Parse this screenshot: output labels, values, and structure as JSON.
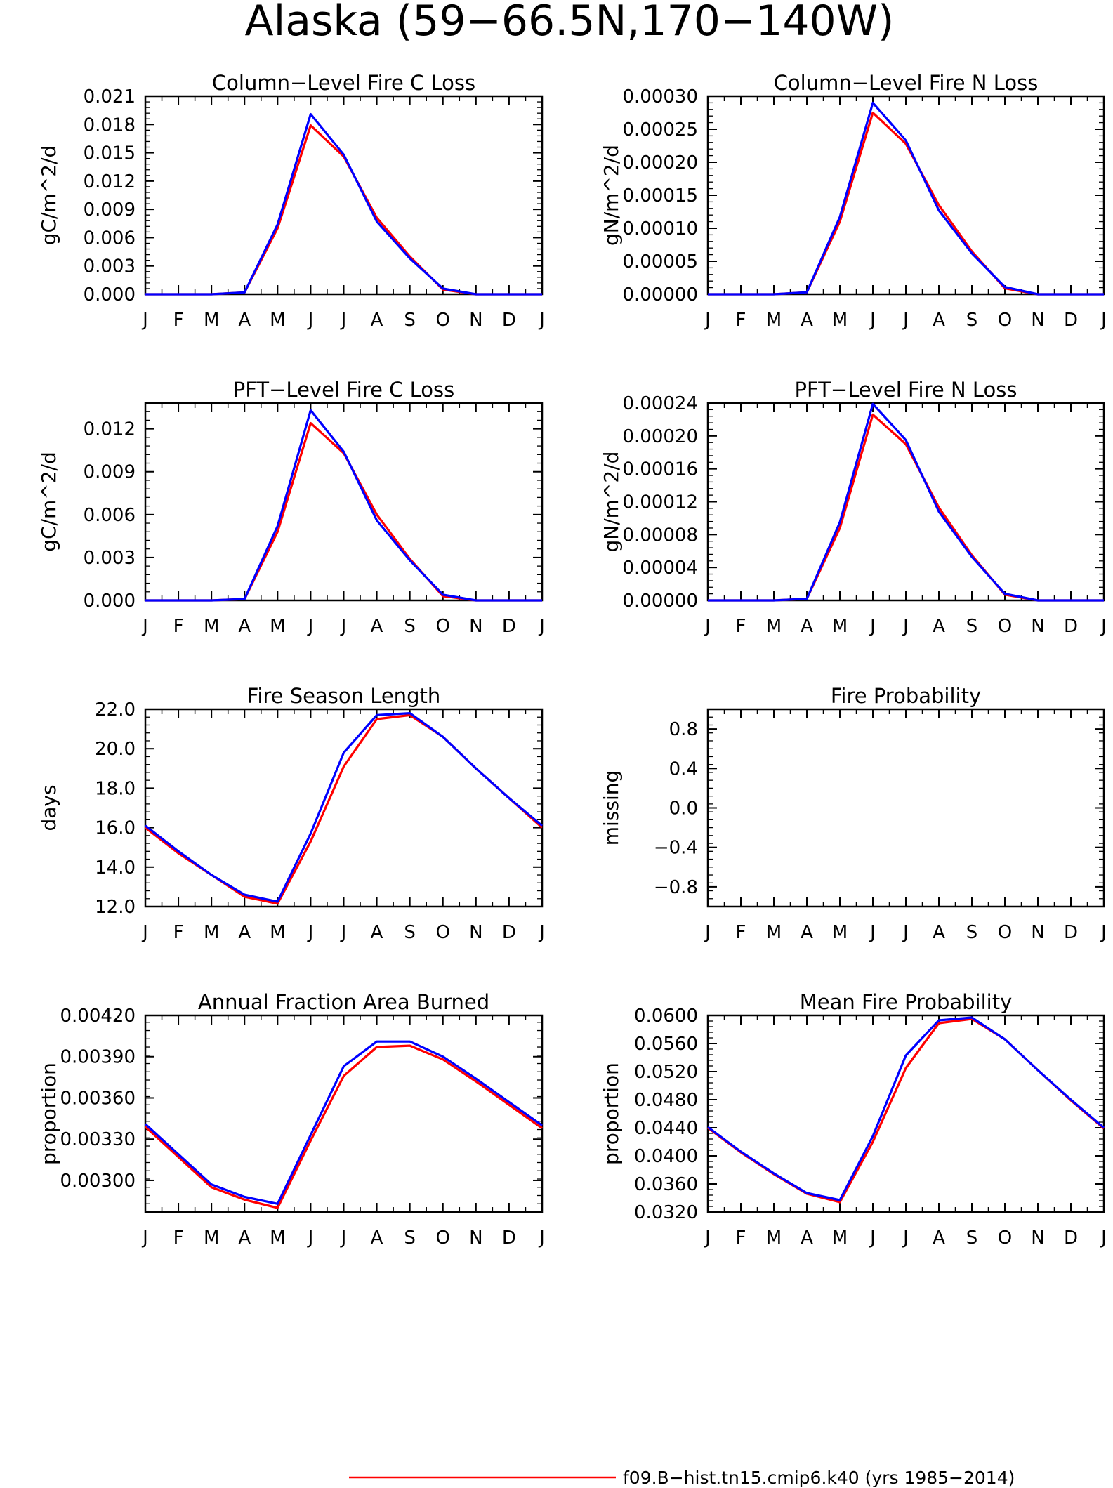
{
  "title": "Alaska (59−66.5N,170−140W)",
  "colors": {
    "series_1": "#ff0000",
    "series_2": "#0000ff",
    "axis": "#000000"
  },
  "legend": {
    "items": [
      {
        "label": "f09.B−hist.tn15.cmip6.k40 (yrs 1985−2014)",
        "color": "#ff0000"
      }
    ]
  },
  "chart_data": [
    {
      "type": "line",
      "title": "Column−Level Fire C Loss",
      "ylabel": "gC/m^2/d",
      "categories": [
        "J",
        "F",
        "M",
        "A",
        "M",
        "J",
        "J",
        "A",
        "S",
        "O",
        "N",
        "D",
        "J"
      ],
      "ylim": [
        0,
        0.021
      ],
      "yticks": [
        "0.000",
        "0.003",
        "0.006",
        "0.009",
        "0.012",
        "0.015",
        "0.018",
        "0.021"
      ],
      "series": [
        {
          "values": [
            0,
            0,
            0,
            0.0002,
            0.007,
            0.0179,
            0.0146,
            0.0081,
            0.004,
            0.0005,
            0,
            0,
            0
          ]
        },
        {
          "values": [
            0,
            0,
            0,
            0.0002,
            0.0074,
            0.0191,
            0.0148,
            0.0077,
            0.0038,
            0.0006,
            0,
            0,
            0
          ]
        }
      ]
    },
    {
      "type": "line",
      "title": "Column−Level Fire N Loss",
      "ylabel": "gN/m^2/d",
      "categories": [
        "J",
        "F",
        "M",
        "A",
        "M",
        "J",
        "J",
        "A",
        "S",
        "O",
        "N",
        "D",
        "J"
      ],
      "ylim": [
        0,
        0.0003
      ],
      "yticks": [
        "0.00000",
        "0.00005",
        "0.00010",
        "0.00015",
        "0.00020",
        "0.00025",
        "0.00030"
      ],
      "series": [
        {
          "values": [
            0,
            0,
            0,
            3e-06,
            0.00011,
            0.000275,
            0.000228,
            0.000135,
            6.5e-05,
            9e-06,
            0,
            0,
            0
          ]
        },
        {
          "values": [
            0,
            0,
            0,
            3e-06,
            0.000117,
            0.00029,
            0.000233,
            0.000127,
            6.2e-05,
            1.1e-05,
            0,
            0,
            0
          ]
        }
      ]
    },
    {
      "type": "line",
      "title": "PFT−Level Fire C Loss",
      "ylabel": "gC/m^2/d",
      "categories": [
        "J",
        "F",
        "M",
        "A",
        "M",
        "J",
        "J",
        "A",
        "S",
        "O",
        "N",
        "D",
        "J"
      ],
      "ylim": [
        0,
        0.0138
      ],
      "yticks": [
        "0.000",
        "0.003",
        "0.006",
        "0.009",
        "0.012"
      ],
      "ytick_values": [
        0,
        0.003,
        0.006,
        0.009,
        0.012
      ],
      "series": [
        {
          "values": [
            0,
            0,
            0,
            0.0001,
            0.0048,
            0.0124,
            0.0103,
            0.006,
            0.0029,
            0.0003,
            0,
            0,
            0
          ]
        },
        {
          "values": [
            0,
            0,
            0,
            0.0001,
            0.0052,
            0.0133,
            0.0104,
            0.0056,
            0.0028,
            0.0004,
            0,
            0,
            0
          ]
        }
      ]
    },
    {
      "type": "line",
      "title": "PFT−Level Fire N Loss",
      "ylabel": "gN/m^2/d",
      "categories": [
        "J",
        "F",
        "M",
        "A",
        "M",
        "J",
        "J",
        "A",
        "S",
        "O",
        "N",
        "D",
        "J"
      ],
      "ylim": [
        0,
        0.00024
      ],
      "yticks": [
        "0.00000",
        "0.00004",
        "0.00008",
        "0.00012",
        "0.00016",
        "0.00020",
        "0.00024"
      ],
      "series": [
        {
          "values": [
            0,
            0,
            0,
            2e-06,
            8.8e-05,
            0.000226,
            0.00019,
            0.000113,
            5.5e-05,
            7e-06,
            0,
            0,
            0
          ]
        },
        {
          "values": [
            0,
            0,
            0,
            2e-06,
            9.5e-05,
            0.000239,
            0.000195,
            0.000108,
            5.3e-05,
            8e-06,
            0,
            0,
            0
          ]
        }
      ]
    },
    {
      "type": "line",
      "title": "Fire Season Length",
      "ylabel": "days",
      "categories": [
        "J",
        "F",
        "M",
        "A",
        "M",
        "J",
        "J",
        "A",
        "S",
        "O",
        "N",
        "D",
        "J"
      ],
      "ylim": [
        12,
        22
      ],
      "yticks": [
        "12.0",
        "14.0",
        "16.0",
        "18.0",
        "20.0",
        "22.0"
      ],
      "series": [
        {
          "values": [
            16.0,
            14.7,
            13.6,
            12.5,
            12.15,
            15.3,
            19.1,
            21.5,
            21.7,
            20.6,
            19.0,
            17.5,
            16.0
          ]
        },
        {
          "values": [
            16.1,
            14.8,
            13.6,
            12.6,
            12.25,
            15.7,
            19.8,
            21.7,
            21.8,
            20.6,
            19.0,
            17.5,
            16.1
          ]
        }
      ]
    },
    {
      "type": "line",
      "title": "Fire Probability",
      "ylabel": "missing",
      "categories": [
        "J",
        "F",
        "M",
        "A",
        "M",
        "J",
        "J",
        "A",
        "S",
        "O",
        "N",
        "D",
        "J"
      ],
      "ylim": [
        -1,
        1
      ],
      "yticks": [
        "−0.8",
        "−0.4",
        "0.0",
        "0.4",
        "0.8"
      ],
      "ytick_values": [
        -0.8,
        -0.4,
        0.0,
        0.4,
        0.8
      ],
      "series": []
    },
    {
      "type": "line",
      "title": "Annual Fraction Area Burned",
      "ylabel": "proportion",
      "categories": [
        "J",
        "F",
        "M",
        "A",
        "M",
        "J",
        "J",
        "A",
        "S",
        "O",
        "N",
        "D",
        "J"
      ],
      "ylim": [
        0.00277,
        0.0042
      ],
      "yticks": [
        "0.00300",
        "0.00330",
        "0.00360",
        "0.00390",
        "0.00420"
      ],
      "ytick_values": [
        0.003,
        0.0033,
        0.0036,
        0.0039,
        0.0042
      ],
      "series": [
        {
          "values": [
            0.00339,
            0.00317,
            0.00295,
            0.00286,
            0.0028,
            0.00329,
            0.00376,
            0.00397,
            0.00398,
            0.00388,
            0.00372,
            0.00355,
            0.00338
          ]
        },
        {
          "values": [
            0.00341,
            0.00319,
            0.00297,
            0.00288,
            0.00283,
            0.00333,
            0.00383,
            0.00401,
            0.00401,
            0.0039,
            0.00374,
            0.00357,
            0.0034
          ]
        }
      ]
    },
    {
      "type": "line",
      "title": "Mean Fire Probability",
      "ylabel": "proportion",
      "categories": [
        "J",
        "F",
        "M",
        "A",
        "M",
        "J",
        "J",
        "A",
        "S",
        "O",
        "N",
        "D",
        "J"
      ],
      "ylim": [
        0.032,
        0.06
      ],
      "yticks": [
        "0.0320",
        "0.0360",
        "0.0400",
        "0.0440",
        "0.0480",
        "0.0520",
        "0.0560",
        "0.0600"
      ],
      "series": [
        {
          "values": [
            0.044,
            0.0405,
            0.0374,
            0.0346,
            0.0334,
            0.042,
            0.0525,
            0.0589,
            0.0595,
            0.0566,
            0.0522,
            0.0479,
            0.0439
          ]
        },
        {
          "values": [
            0.0441,
            0.0406,
            0.0375,
            0.0347,
            0.0337,
            0.0428,
            0.0543,
            0.0593,
            0.0597,
            0.0566,
            0.0522,
            0.048,
            0.044
          ]
        }
      ]
    }
  ]
}
